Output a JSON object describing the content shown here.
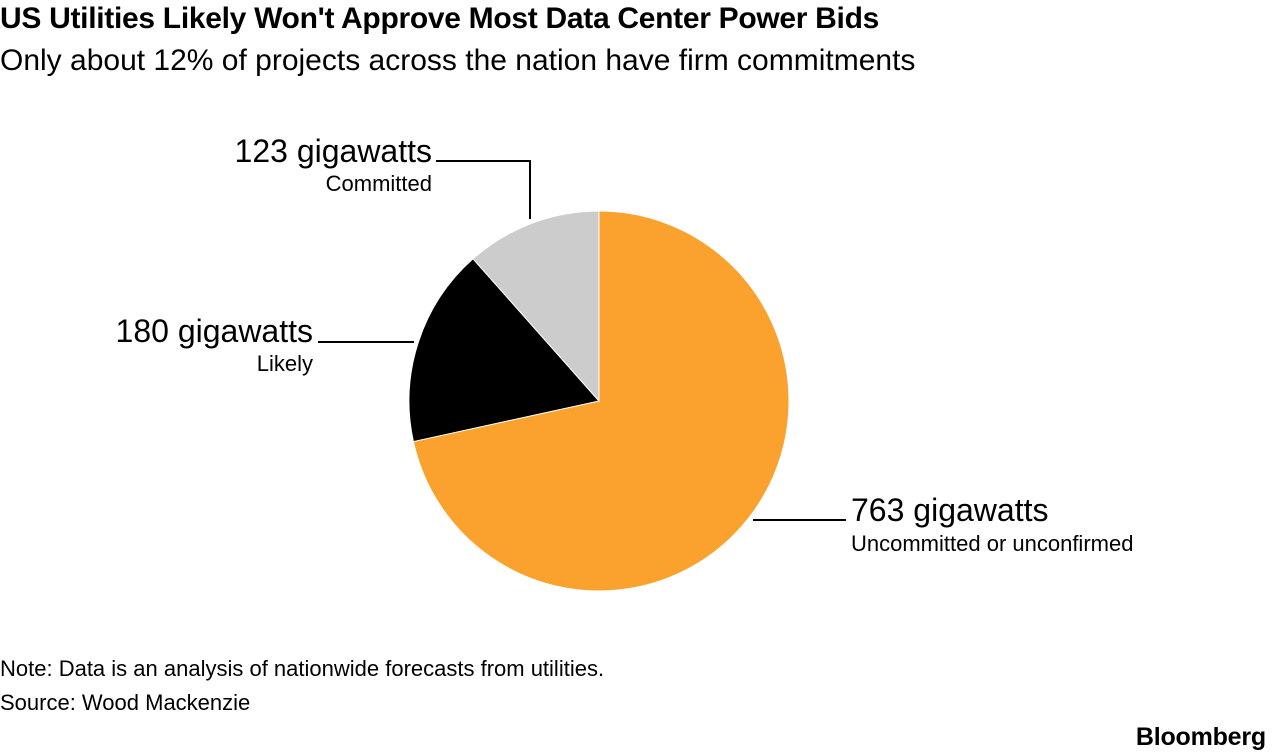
{
  "header": {
    "title": "US Utilities Likely Won't Approve Most Data Center Power Bids",
    "subtitle": "Only about 12% of projects across the nation have firm commitments"
  },
  "chart_data": {
    "type": "pie",
    "title": "US Utilities Likely Won't Approve Most Data Center Power Bids",
    "subtitle": "Only about 12% of projects across the nation have firm commitments",
    "unit": "gigawatts",
    "slices": [
      {
        "label": "Uncommitted or unconfirmed",
        "value": 763,
        "value_label": "763 gigawatts",
        "color": "#fba12d"
      },
      {
        "label": "Likely",
        "value": 180,
        "value_label": "180 gigawatts",
        "color": "#000000"
      },
      {
        "label": "Committed",
        "value": 123,
        "value_label": "123 gigawatts",
        "color": "#cccccc"
      }
    ],
    "start": "12 o'clock, clockwise",
    "legend": "none (direct labels with leader lines)"
  },
  "footer": {
    "note": "Note: Data is an analysis of nationwide forecasts from utilities.",
    "source": "Source: Wood Mackenzie",
    "brand": "Bloomberg"
  }
}
